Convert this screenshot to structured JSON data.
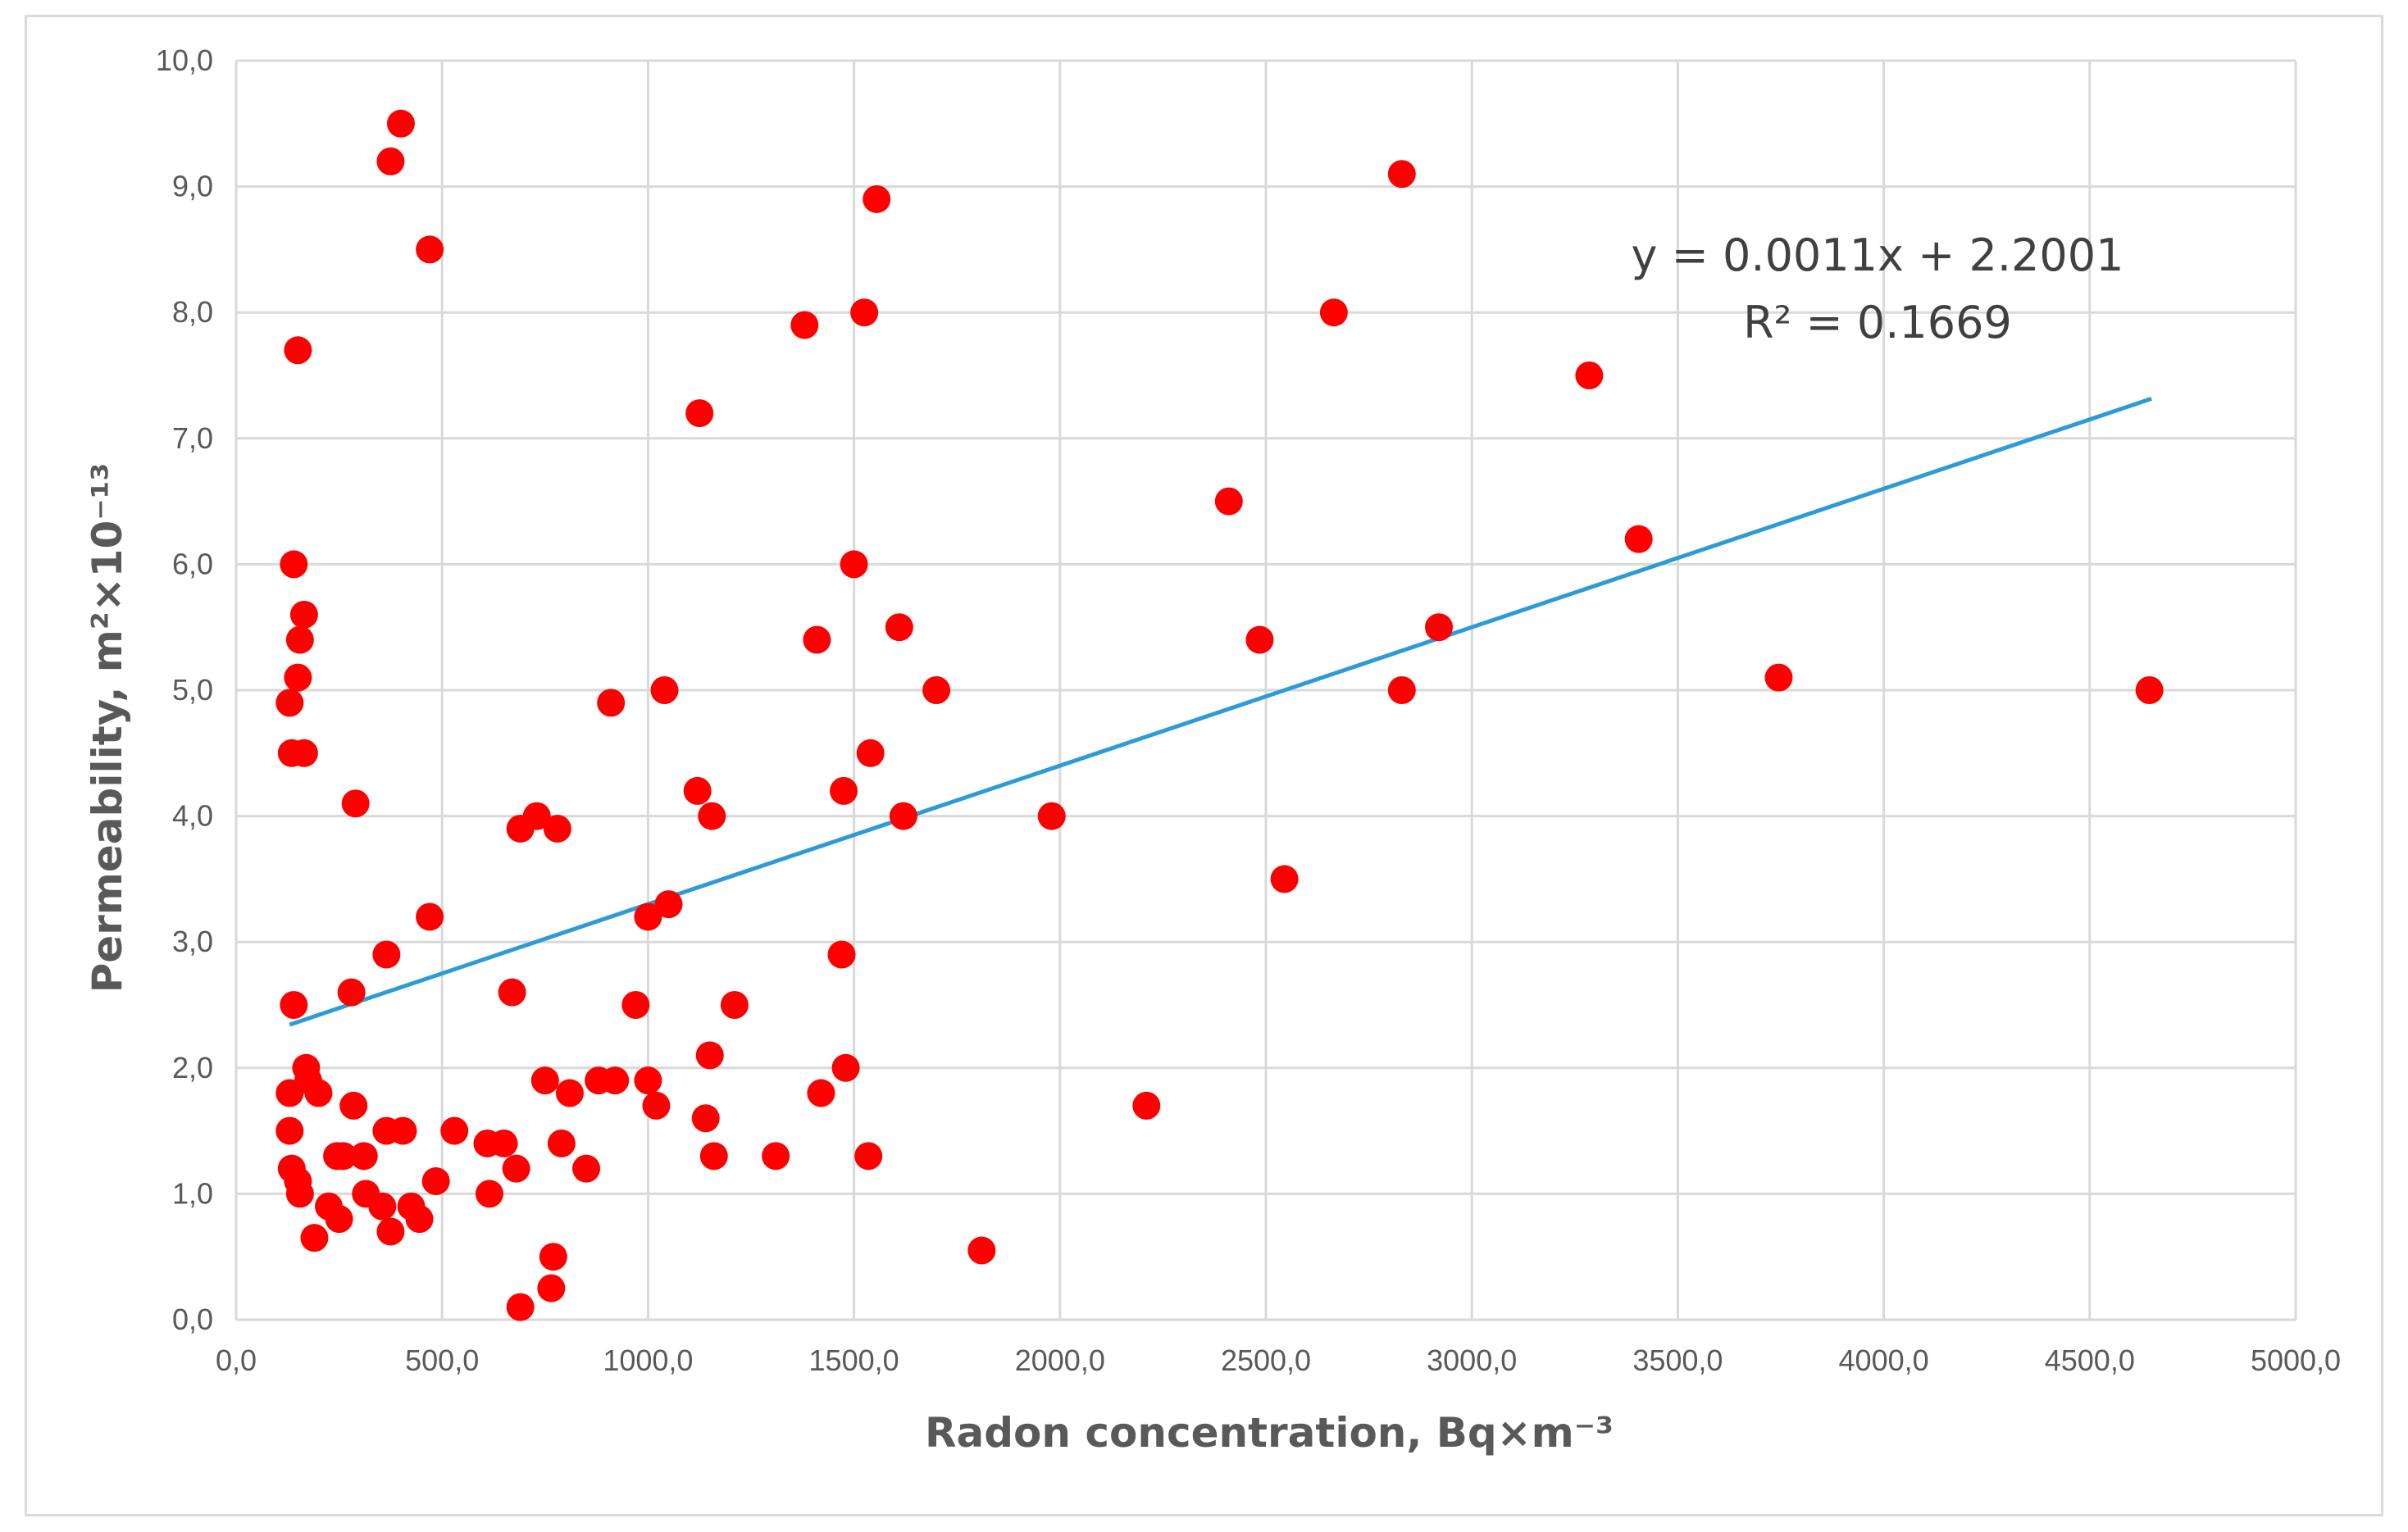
{
  "chart_data": {
    "type": "scatter",
    "xlabel": "Radon concentration, Bq×m⁻³",
    "ylabel": "Permeability, m²×10⁻¹³",
    "xlim": [
      0,
      5000
    ],
    "ylim": [
      0,
      10
    ],
    "x_ticks": [
      "0,0",
      "500,0",
      "1000,0",
      "1500,0",
      "2000,0",
      "2500,0",
      "3000,0",
      "3500,0",
      "4000,0",
      "4500,0",
      "5000,0"
    ],
    "y_ticks": [
      "0,0",
      "1,0",
      "2,0",
      "3,0",
      "4,0",
      "5,0",
      "6,0",
      "7,0",
      "8,0",
      "9,0",
      "10,0"
    ],
    "grid": true,
    "colors": {
      "points": "#ff0000",
      "trendline": "#2e9bd6",
      "grid": "#d9d9d9"
    },
    "trendline": {
      "slope": 0.0011,
      "intercept": 2.2001,
      "x_range": [
        130,
        4650
      ],
      "equation": "y = 0.0011x + 2.2001",
      "r_squared": "R² = 0.1669"
    },
    "points": [
      [
        400,
        9.5
      ],
      [
        375,
        9.2
      ],
      [
        470,
        8.5
      ],
      [
        150,
        7.7
      ],
      [
        140,
        6.0
      ],
      [
        165,
        5.6
      ],
      [
        155,
        5.4
      ],
      [
        150,
        5.1
      ],
      [
        130,
        4.9
      ],
      [
        135,
        4.5
      ],
      [
        165,
        4.5
      ],
      [
        290,
        4.1
      ],
      [
        470,
        3.2
      ],
      [
        365,
        2.9
      ],
      [
        280,
        2.6
      ],
      [
        140,
        2.5
      ],
      [
        170,
        2.0
      ],
      [
        175,
        1.9
      ],
      [
        200,
        1.8
      ],
      [
        130,
        1.8
      ],
      [
        285,
        1.7
      ],
      [
        130,
        1.5
      ],
      [
        365,
        1.5
      ],
      [
        405,
        1.5
      ],
      [
        245,
        1.3
      ],
      [
        260,
        1.3
      ],
      [
        310,
        1.3
      ],
      [
        135,
        1.2
      ],
      [
        150,
        1.1
      ],
      [
        155,
        1.0
      ],
      [
        315,
        1.0
      ],
      [
        225,
        0.9
      ],
      [
        355,
        0.9
      ],
      [
        425,
        0.9
      ],
      [
        250,
        0.8
      ],
      [
        445,
        0.8
      ],
      [
        375,
        0.7
      ],
      [
        190,
        0.65
      ],
      [
        485,
        1.1
      ],
      [
        530,
        1.5
      ],
      [
        610,
        1.4
      ],
      [
        650,
        1.4
      ],
      [
        670,
        2.6
      ],
      [
        680,
        1.2
      ],
      [
        615,
        1.0
      ],
      [
        690,
        3.9
      ],
      [
        730,
        4.0
      ],
      [
        780,
        3.9
      ],
      [
        750,
        1.9
      ],
      [
        790,
        1.4
      ],
      [
        810,
        1.8
      ],
      [
        850,
        1.2
      ],
      [
        880,
        1.9
      ],
      [
        920,
        1.9
      ],
      [
        910,
        4.9
      ],
      [
        970,
        2.5
      ],
      [
        1000,
        3.2
      ],
      [
        1000,
        1.9
      ],
      [
        1020,
        1.7
      ],
      [
        1040,
        5.0
      ],
      [
        1050,
        3.3
      ],
      [
        770,
        0.5
      ],
      [
        765,
        0.25
      ],
      [
        690,
        0.1
      ],
      [
        1120,
        4.2
      ],
      [
        1125,
        7.2
      ],
      [
        1140,
        1.6
      ],
      [
        1150,
        2.1
      ],
      [
        1155,
        4.0
      ],
      [
        1160,
        1.3
      ],
      [
        1210,
        2.5
      ],
      [
        1310,
        1.3
      ],
      [
        1380,
        7.9
      ],
      [
        1410,
        5.4
      ],
      [
        1420,
        1.8
      ],
      [
        1470,
        2.9
      ],
      [
        1475,
        4.2
      ],
      [
        1480,
        2.0
      ],
      [
        1500,
        6.0
      ],
      [
        1525,
        8.0
      ],
      [
        1535,
        1.3
      ],
      [
        1540,
        4.5
      ],
      [
        1555,
        8.9
      ],
      [
        1610,
        5.5
      ],
      [
        1620,
        4.0
      ],
      [
        1700,
        5.0
      ],
      [
        1810,
        0.55
      ],
      [
        1980,
        4.0
      ],
      [
        2210,
        1.7
      ],
      [
        2410,
        6.5
      ],
      [
        2485,
        5.4
      ],
      [
        2545,
        3.5
      ],
      [
        2665,
        8.0
      ],
      [
        2830,
        9.1
      ],
      [
        2830,
        5.0
      ],
      [
        2920,
        5.5
      ],
      [
        3285,
        7.5
      ],
      [
        3405,
        6.2
      ],
      [
        3745,
        5.1
      ],
      [
        4645,
        5.0
      ]
    ]
  }
}
